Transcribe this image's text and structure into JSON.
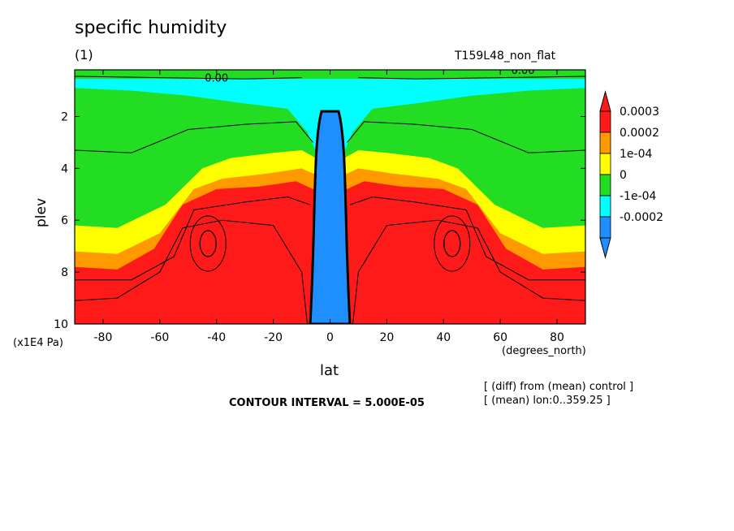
{
  "chart_data": {
    "type": "heatmap",
    "title": "specific humidity",
    "subtitle": "(1)",
    "run_label": "T159L48_non_flat",
    "xlabel": "lat",
    "xunits": "(degrees_north)",
    "ylabel": "plev",
    "yunits": "(x1E4 Pa)",
    "x_ticks": [
      "-80",
      "-60",
      "-40",
      "-20",
      "0",
      "20",
      "40",
      "60",
      "80"
    ],
    "x_tick_values": [
      -80,
      -60,
      -40,
      -20,
      0,
      20,
      40,
      60,
      80
    ],
    "y_ticks": [
      "2",
      "4",
      "6",
      "8",
      "10"
    ],
    "y_tick_values": [
      2,
      4,
      6,
      8,
      10
    ],
    "xlim": [
      -90,
      90
    ],
    "ylim": [
      10,
      0.2
    ],
    "contour_interval_text": "CONTOUR INTERVAL = 5.000E-05",
    "contour_labels": [
      "0.00",
      "0.00"
    ],
    "legend_labels": [
      "0.0003",
      "0.0002",
      "1e-04",
      "0",
      "-1e-04",
      "-0.0002"
    ],
    "colors": {
      "red": "#ff1a1a",
      "orange": "#ff9900",
      "yellow": "#ffff00",
      "green": "#22dd22",
      "cyan": "#00ffff",
      "blue": "#1f8fff"
    },
    "notes": [
      "[ (diff) from (mean) control ]",
      "[ (mean) lon:0..359.25 ]"
    ]
  }
}
